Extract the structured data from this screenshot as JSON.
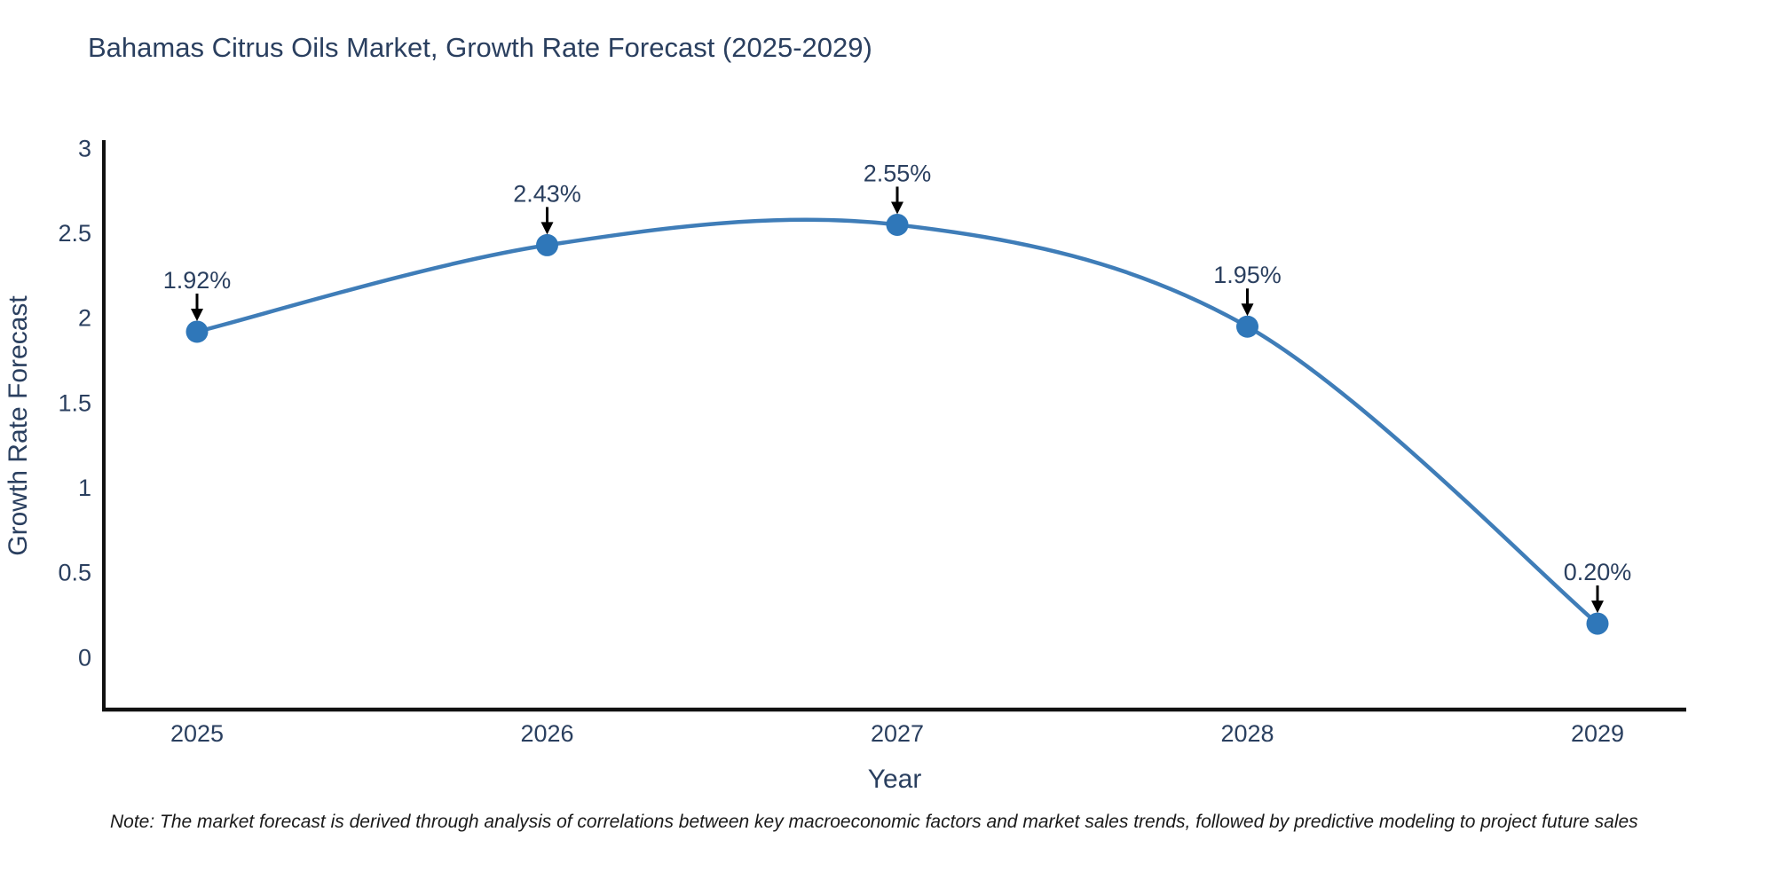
{
  "title": "Bahamas Citrus Oils Market, Growth Rate Forecast (2025-2029)",
  "note": "Note: The market forecast is derived through analysis of correlations between key macroeconomic factors and market sales trends, followed by predictive modeling to project future sales",
  "chart_data": {
    "type": "line",
    "line_shape": "spline",
    "title": "Bahamas Citrus Oils Market, Growth Rate Forecast (2025-2029)",
    "x": [
      2025,
      2026,
      2027,
      2028,
      2029
    ],
    "values": [
      1.92,
      2.43,
      2.55,
      1.95,
      0.2
    ],
    "point_labels": [
      "1.92%",
      "2.43%",
      "2.55%",
      "1.95%",
      "0.20%"
    ],
    "xlabel": "Year",
    "ylabel": "Growth Rate Forecast",
    "x_tick_labels": [
      "2025",
      "2026",
      "2027",
      "2028",
      "2029"
    ],
    "y_ticks": [
      3,
      2.5,
      2,
      1.5,
      1,
      0.5,
      0
    ],
    "ylim": [
      -0.31,
      3.03
    ],
    "xlim": [
      2024.73,
      2029.26
    ],
    "grid": false,
    "legend": "none",
    "colors": {
      "line": "#3f7db8",
      "marker": "#2f77b9",
      "axis": "#111111",
      "text": "#2a3f5f",
      "annotation_arrow": "#000000"
    }
  }
}
